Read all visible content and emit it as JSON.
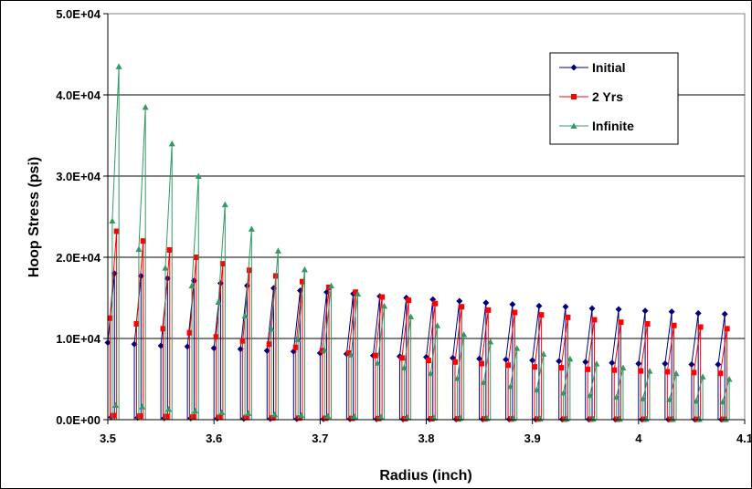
{
  "chart_data": {
    "type": "line",
    "title": "",
    "xlabel": "Radius (inch)",
    "ylabel": "Hoop Stress (psi)",
    "xlim": [
      3.5,
      4.1
    ],
    "ylim": [
      0,
      50000
    ],
    "x_tick_labels": [
      "3.5",
      "3.6",
      "3.7",
      "3.8",
      "3.9",
      "4",
      "4.1"
    ],
    "x_tick_values": [
      3.5,
      3.6,
      3.7,
      3.8,
      3.9,
      4.0,
      4.1
    ],
    "y_tick_labels": [
      "0.0E+00",
      "1.0E+04",
      "2.0E+04",
      "3.0E+04",
      "4.0E+04",
      "5.0E+04"
    ],
    "y_tick_values": [
      0,
      10000,
      20000,
      30000,
      40000,
      50000
    ],
    "grid": "horizontal",
    "legend_position": "top-right",
    "x_ring_starts": [
      3.5,
      3.525,
      3.55,
      3.575,
      3.6,
      3.625,
      3.65,
      3.675,
      3.7,
      3.725,
      3.75,
      3.775,
      3.8,
      3.825,
      3.85,
      3.875,
      3.9,
      3.925,
      3.95,
      3.975,
      4.0,
      4.025,
      4.05,
      4.075
    ],
    "ring_width": 0.00625,
    "series": [
      {
        "name": "Initial",
        "color": "#000080",
        "marker": "diamond",
        "low": [
          300,
          250,
          200,
          180,
          150,
          130,
          110,
          100,
          90,
          80,
          70,
          60,
          60,
          50,
          50,
          50,
          40,
          40,
          40,
          40,
          30,
          30,
          30,
          30
        ],
        "mid": [
          9500,
          9300,
          9100,
          9000,
          8800,
          8700,
          8500,
          8400,
          8200,
          8100,
          7900,
          7800,
          7700,
          7600,
          7500,
          7400,
          7300,
          7200,
          7100,
          7000,
          6900,
          6900,
          6800,
          6800
        ],
        "high": [
          18000,
          17700,
          17400,
          17100,
          16800,
          16500,
          16200,
          15900,
          15700,
          15500,
          15200,
          15000,
          14800,
          14600,
          14400,
          14200,
          14000,
          13900,
          13700,
          13600,
          13400,
          13300,
          13100,
          13000
        ]
      },
      {
        "name": "2 Yrs",
        "color": "#ff0000",
        "marker": "square",
        "low": [
          500,
          450,
          400,
          350,
          300,
          260,
          230,
          200,
          180,
          160,
          140,
          120,
          110,
          100,
          90,
          80,
          70,
          60,
          60,
          50,
          50,
          40,
          40,
          40
        ],
        "mid": [
          12500,
          11800,
          11200,
          10700,
          10200,
          9700,
          9300,
          8900,
          8500,
          8200,
          7900,
          7600,
          7300,
          7100,
          6900,
          6700,
          6500,
          6400,
          6200,
          6100,
          6000,
          5900,
          5800,
          5700
        ],
        "high": [
          23200,
          22000,
          20900,
          20000,
          19200,
          18400,
          17700,
          17000,
          16300,
          15700,
          15100,
          14700,
          14300,
          13900,
          13500,
          13200,
          12900,
          12600,
          12300,
          12000,
          11800,
          11600,
          11400,
          11200
        ]
      },
      {
        "name": "Infinite",
        "color": "#339966",
        "marker": "triangle",
        "low": [
          1800,
          1600,
          1300,
          1100,
          900,
          800,
          650,
          550,
          450,
          380,
          320,
          270,
          230,
          200,
          170,
          150,
          130,
          110,
          100,
          90,
          80,
          70,
          60,
          50
        ],
        "mid": [
          24500,
          21000,
          18700,
          16500,
          14500,
          12800,
          11200,
          9900,
          8600,
          8000,
          7000,
          6400,
          5700,
          5100,
          4600,
          4100,
          3700,
          3300,
          3000,
          2800,
          2600,
          2500,
          2300,
          2200
        ],
        "high": [
          43500,
          38500,
          34000,
          30000,
          26500,
          23500,
          20800,
          18500,
          16500,
          15500,
          14000,
          12700,
          11600,
          10500,
          9600,
          8800,
          8100,
          7500,
          6900,
          6400,
          6000,
          5700,
          5300,
          5000
        ]
      }
    ]
  }
}
